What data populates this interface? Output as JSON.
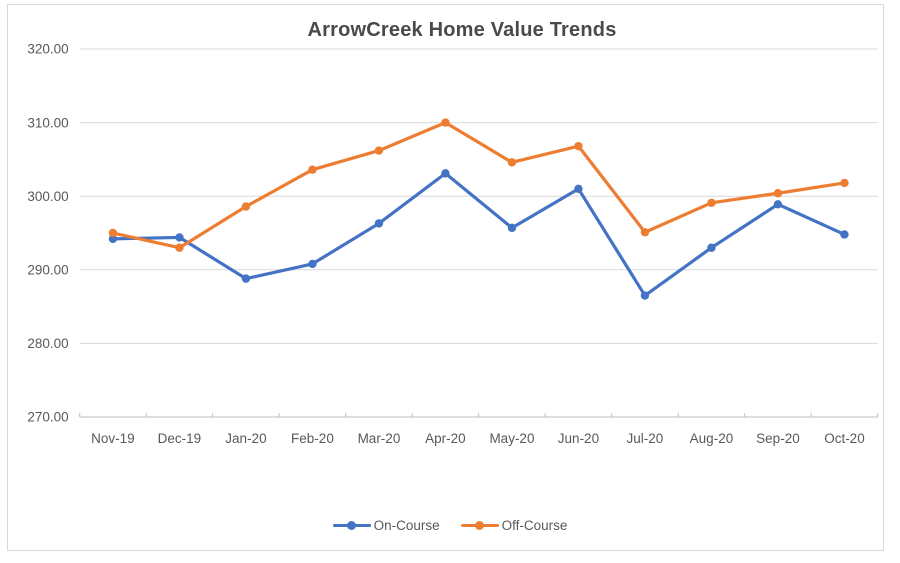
{
  "chart_data": {
    "type": "line",
    "title": "ArrowCreek Home Value Trends",
    "categories": [
      "Nov-19",
      "Dec-19",
      "Jan-20",
      "Feb-20",
      "Mar-20",
      "Apr-20",
      "May-20",
      "Jun-20",
      "Jul-20",
      "Aug-20",
      "Sep-20",
      "Oct-20"
    ],
    "series": [
      {
        "name": "On-Course",
        "color": "#4472C4",
        "values": [
          294.2,
          294.4,
          288.8,
          290.8,
          296.3,
          303.1,
          295.7,
          301.0,
          286.5,
          293.0,
          298.9,
          294.8
        ]
      },
      {
        "name": "Off-Course",
        "color": "#ED7D31",
        "values": [
          295.0,
          293.0,
          298.6,
          303.6,
          306.2,
          310.0,
          304.6,
          306.8,
          295.1,
          299.1,
          300.4,
          301.8
        ]
      }
    ],
    "xlabel": "",
    "ylabel": "",
    "ylim": [
      270,
      320
    ],
    "y_tick_values": [
      320,
      310,
      300,
      290,
      280,
      270
    ],
    "y_tick_labels": [
      "320.00",
      "310.00",
      "300.00",
      "290.00",
      "280.00",
      "270.00"
    ],
    "grid": true,
    "legend_position": "bottom"
  },
  "colors": {
    "gridline": "#D9D9D9",
    "axis": "#BFBFBF",
    "tick_label": "#595959",
    "title": "#4A4A4A",
    "frame_border": "#D9D9D9",
    "background": "#FFFFFF"
  }
}
